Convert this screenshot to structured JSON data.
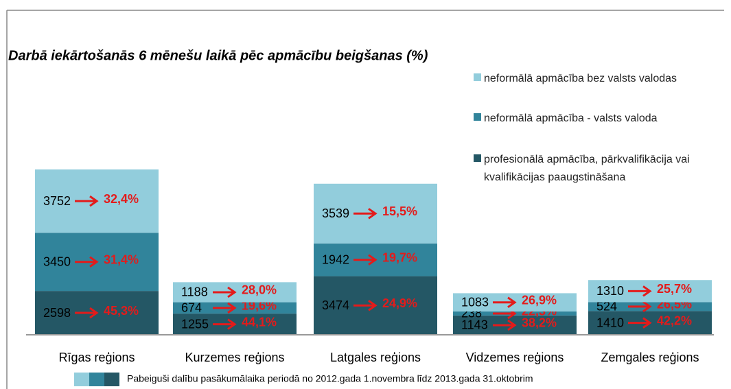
{
  "chart_data": {
    "type": "stacked-bar",
    "title": "Darbā iekārtošanās 6 mēnešu laikā pēc apmācību beigšanas (%)",
    "categories": [
      "Rīgas reģions",
      "Kurzemes reģions",
      "Latgales reģions",
      "Vidzemes reģions",
      "Zemgales reģions"
    ],
    "series": [
      {
        "name": "profesionālā apmācība, pārkvalifikācija vai kvalifikācijas paaugstināšana",
        "color": "#245765",
        "values": [
          2598,
          1255,
          3474,
          1143,
          1410
        ],
        "shares": [
          45.3,
          44.1,
          24.9,
          38.2,
          42.2
        ],
        "share_labels": [
          "45,3%",
          "44,1%",
          "24,9%",
          "38,2%",
          "42,2%"
        ]
      },
      {
        "name": "neformālā apmācība - valsts valoda",
        "color": "#31849b",
        "values": [
          3450,
          674,
          1942,
          238,
          524
        ],
        "shares": [
          31.4,
          19.6,
          19.7,
          22.3,
          26.5
        ],
        "share_labels": [
          "31,4%",
          "19,6%",
          "19,7%",
          "22,3%",
          "26,5%"
        ]
      },
      {
        "name": "neformālā apmācība bez valsts valodas",
        "color": "#92cddc",
        "values": [
          3752,
          1188,
          3539,
          1083,
          1310
        ],
        "shares": [
          32.4,
          28.0,
          15.5,
          26.9,
          25.7
        ],
        "share_labels": [
          "32,4%",
          "28,0%",
          "15,5%",
          "26,9%",
          "25,7%"
        ]
      }
    ],
    "footnote": "Pabeiguši dalību pasākumālaika periodā no 2012.gada 1.novembra līdz 2013.gada 31.oktobrim"
  }
}
